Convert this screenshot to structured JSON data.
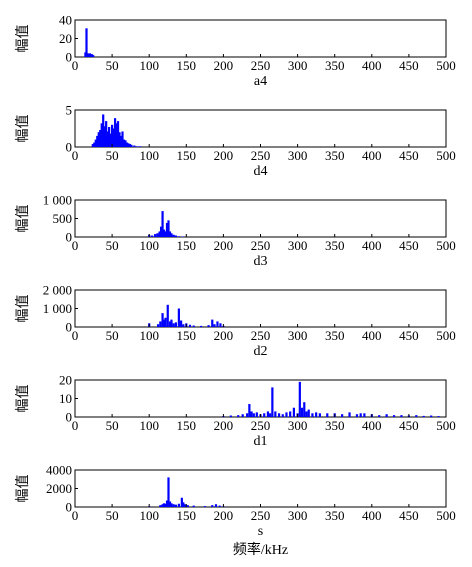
{
  "figure": {
    "ylabel": "幅值",
    "xlabel": "频率/kHz",
    "colors": {
      "bar": "#0000ff",
      "axis": "#000000"
    }
  },
  "chart_data": [
    {
      "type": "bar",
      "name": "a4",
      "xlim": [
        0,
        500
      ],
      "ylim": [
        0,
        40
      ],
      "xticks": [
        0,
        50,
        100,
        150,
        200,
        250,
        300,
        350,
        400,
        450,
        500
      ],
      "yticks": [
        0,
        20,
        40
      ],
      "ytick_labels": [
        "0",
        "20",
        "40"
      ],
      "ylabel": "幅值",
      "subtitle": "a4",
      "x": [
        14,
        15.5,
        17,
        18.5,
        20,
        21.5,
        23,
        24.5
      ],
      "values": [
        5,
        31,
        4,
        3,
        4,
        3,
        3,
        2
      ]
    },
    {
      "type": "bar",
      "name": "d4",
      "xlim": [
        0,
        500
      ],
      "ylim": [
        0,
        5
      ],
      "xticks": [
        0,
        50,
        100,
        150,
        200,
        250,
        300,
        350,
        400,
        450,
        500
      ],
      "yticks": [
        0,
        5
      ],
      "ytick_labels": [
        "0",
        "5"
      ],
      "ylabel": "幅值",
      "subtitle": "d4",
      "x": [
        24,
        26,
        28,
        30,
        32,
        34,
        36,
        38,
        40,
        42,
        44,
        46,
        48,
        50,
        52,
        54,
        56,
        58,
        60,
        62,
        64,
        66,
        68,
        70,
        72,
        74,
        76,
        80,
        84,
        88
      ],
      "values": [
        0.4,
        0.6,
        1.0,
        1.5,
        2.0,
        2.3,
        3.2,
        4.4,
        2.8,
        3.5,
        2.1,
        2.7,
        1.8,
        3.0,
        2.5,
        3.9,
        3.2,
        3.5,
        2.0,
        1.5,
        2.1,
        1.0,
        0.9,
        0.6,
        0.5,
        0.4,
        0.3,
        0.2,
        0.1,
        0.1
      ]
    },
    {
      "type": "bar",
      "name": "d3",
      "xlim": [
        0,
        500
      ],
      "ylim": [
        0,
        1000
      ],
      "xticks": [
        0,
        50,
        100,
        150,
        200,
        250,
        300,
        350,
        400,
        450,
        500
      ],
      "yticks": [
        0,
        500,
        1000
      ],
      "ytick_labels": [
        "0",
        "500",
        "1 000"
      ],
      "ylabel": "幅值",
      "subtitle": "d3",
      "x": [
        100,
        104,
        108,
        111,
        114,
        116,
        118,
        120,
        122,
        124,
        126,
        128,
        130,
        133,
        136,
        140,
        145
      ],
      "values": [
        60,
        40,
        80,
        100,
        150,
        280,
        700,
        200,
        150,
        380,
        450,
        150,
        100,
        60,
        40,
        20,
        15
      ]
    },
    {
      "type": "bar",
      "name": "d2",
      "xlim": [
        0,
        500
      ],
      "ylim": [
        0,
        2000
      ],
      "xticks": [
        0,
        50,
        100,
        150,
        200,
        250,
        300,
        350,
        400,
        450,
        500
      ],
      "yticks": [
        0,
        1000,
        2000
      ],
      "ytick_labels": [
        "0",
        "1 000",
        "2 000"
      ],
      "ylabel": "幅值",
      "subtitle": "d2",
      "x": [
        100,
        112,
        115,
        118,
        120,
        122,
        125,
        128,
        130,
        133,
        136,
        140,
        143,
        146,
        150,
        155,
        160,
        170,
        180,
        185,
        188,
        192,
        196,
        200
      ],
      "values": [
        200,
        150,
        300,
        750,
        400,
        500,
        1200,
        300,
        400,
        200,
        250,
        1000,
        350,
        150,
        200,
        120,
        80,
        60,
        100,
        400,
        150,
        300,
        200,
        60
      ]
    },
    {
      "type": "bar",
      "name": "d1",
      "xlim": [
        0,
        500
      ],
      "ylim": [
        0,
        20
      ],
      "xticks": [
        0,
        50,
        100,
        150,
        200,
        250,
        300,
        350,
        400,
        450,
        500
      ],
      "yticks": [
        0,
        10,
        20
      ],
      "ytick_labels": [
        "0",
        "10",
        "20"
      ],
      "ylabel": "幅值",
      "subtitle": "d1",
      "x": [
        200,
        210,
        220,
        226,
        232,
        235,
        238,
        241,
        245,
        250,
        255,
        260,
        263,
        266,
        270,
        275,
        280,
        285,
        290,
        295,
        300,
        303,
        306,
        309,
        312,
        315,
        320,
        325,
        330,
        340,
        350,
        360,
        370,
        380,
        385,
        390,
        400,
        410,
        420,
        430,
        440,
        450,
        460,
        470,
        480,
        490
      ],
      "values": [
        0.5,
        0.8,
        1.0,
        1.5,
        2.0,
        7.0,
        3.0,
        2.0,
        2.5,
        1.5,
        2.0,
        3.0,
        2.0,
        16.0,
        3.0,
        2.0,
        1.5,
        2.5,
        3.0,
        5.0,
        2.0,
        19.0,
        5.0,
        8.0,
        3.0,
        4.0,
        2.0,
        2.5,
        2.0,
        2.0,
        2.0,
        1.5,
        2.5,
        1.5,
        2.0,
        2.0,
        1.5,
        1.0,
        1.5,
        1.0,
        1.0,
        0.8,
        1.0,
        0.6,
        0.8,
        0.5
      ]
    },
    {
      "type": "bar",
      "name": "s",
      "xlim": [
        0,
        500
      ],
      "ylim": [
        0,
        4000
      ],
      "xticks": [
        0,
        50,
        100,
        150,
        200,
        250,
        300,
        350,
        400,
        450,
        500
      ],
      "yticks": [
        0,
        2000,
        4000
      ],
      "ytick_labels": [
        "0",
        "2000",
        "4000"
      ],
      "ylabel": "幅值",
      "subtitle": "s",
      "x": [
        100,
        115,
        118,
        120,
        122,
        124,
        126,
        128,
        130,
        133,
        136,
        140,
        144,
        146,
        148,
        152,
        160,
        175,
        185,
        190,
        195,
        200
      ],
      "values": [
        80,
        200,
        300,
        400,
        350,
        700,
        3200,
        600,
        400,
        300,
        250,
        350,
        1000,
        500,
        300,
        200,
        150,
        100,
        200,
        300,
        150,
        80
      ]
    }
  ]
}
